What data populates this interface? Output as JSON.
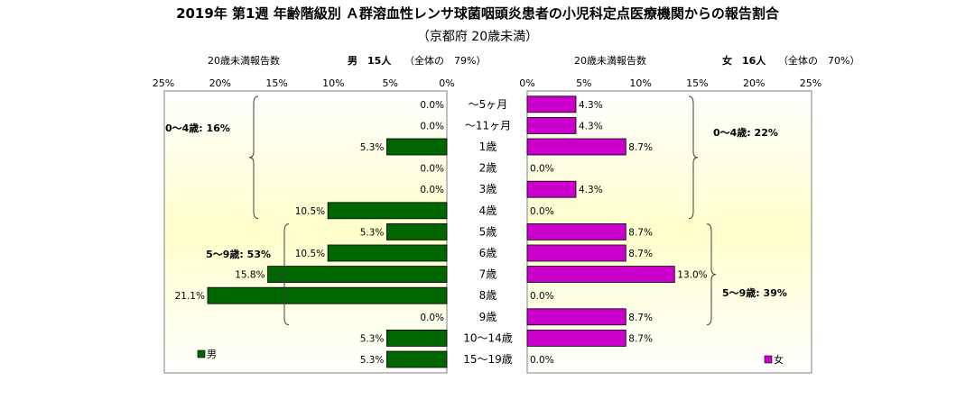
{
  "chart_data": {
    "type": "bar",
    "title": "2019年 第1週 年齢階級別 Ａ群溶血性レンサ球菌咽頭炎患者の小児科定点医療機関からの報告割合",
    "subtitle": "（京都府 20歳未満）",
    "categories": [
      "～5ヶ月",
      "～11ヶ月",
      "1歳",
      "2歳",
      "3歳",
      "4歳",
      "5歳",
      "6歳",
      "7歳",
      "8歳",
      "9歳",
      "10～14歳",
      "15～19歳"
    ],
    "x_ticks": [
      "25%",
      "20%",
      "15%",
      "10%",
      "5%",
      "0%",
      "0%",
      "5%",
      "10%",
      "15%",
      "20%",
      "25%"
    ],
    "xlim": [
      0,
      25
    ],
    "series": [
      {
        "name": "男",
        "color": "#006600",
        "side": "left",
        "header_label": "20歳未満報告数",
        "header_count": "男　15人",
        "header_share": "（全体の　79%）",
        "values": [
          0.0,
          0.0,
          5.3,
          0.0,
          0.0,
          10.5,
          5.3,
          10.5,
          15.8,
          21.1,
          0.0,
          5.3,
          5.3
        ],
        "labels": [
          "0.0%",
          "0.0%",
          "5.3%",
          "0.0%",
          "0.0%",
          "10.5%",
          "5.3%",
          "10.5%",
          "15.8%",
          "21.1%",
          "0.0%",
          "5.3%",
          "5.3%"
        ],
        "groups": [
          {
            "label": "0～4歳: 16%",
            "from": 0,
            "to": 5
          },
          {
            "label": "5～9歳: 53%",
            "from": 6,
            "to": 10
          }
        ]
      },
      {
        "name": "女",
        "color": "#CC00CC",
        "side": "right",
        "header_label": "20歳未満報告数",
        "header_count": "女　16人",
        "header_share": "（全体の　70%）",
        "values": [
          4.3,
          4.3,
          8.7,
          0.0,
          4.3,
          0.0,
          8.7,
          8.7,
          13.0,
          0.0,
          8.7,
          8.7,
          0.0
        ],
        "labels": [
          "4.3%",
          "4.3%",
          "8.7%",
          "0.0%",
          "4.3%",
          "0.0%",
          "8.7%",
          "8.7%",
          "13.0%",
          "0.0%",
          "8.7%",
          "8.7%",
          "0.0%"
        ],
        "groups": [
          {
            "label": "0～4歳: 22%",
            "from": 0,
            "to": 5
          },
          {
            "label": "5～9歳: 39%",
            "from": 6,
            "to": 10
          }
        ]
      }
    ]
  }
}
